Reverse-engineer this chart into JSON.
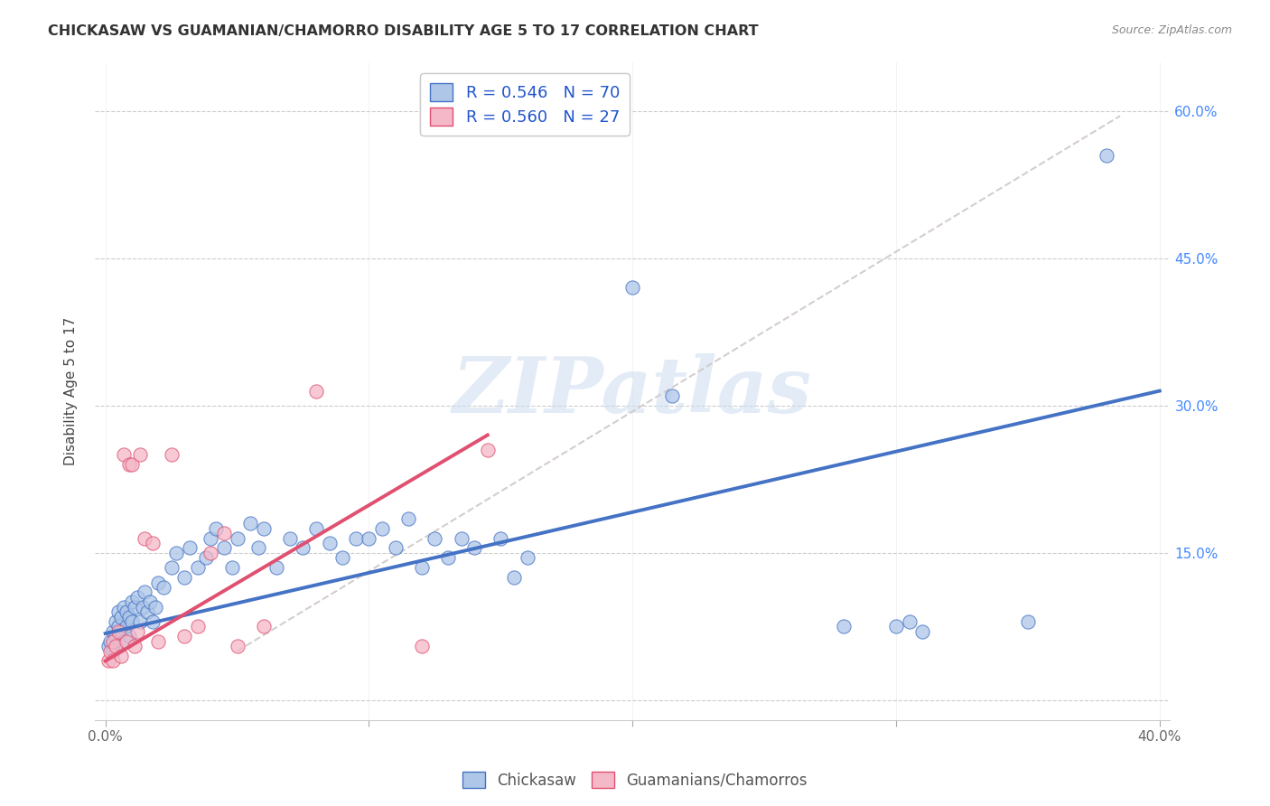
{
  "title": "CHICKASAW VS GUAMANIAN/CHAMORRO DISABILITY AGE 5 TO 17 CORRELATION CHART",
  "source": "Source: ZipAtlas.com",
  "ylabel": "Disability Age 5 to 17",
  "xlim": [
    0.0,
    0.4
  ],
  "ylim": [
    -0.02,
    0.65
  ],
  "ytick_vals": [
    0.0,
    0.15,
    0.3,
    0.45,
    0.6
  ],
  "ytick_labels_right": [
    "",
    "15.0%",
    "30.0%",
    "45.0%",
    "60.0%"
  ],
  "xtick_vals": [
    0.0,
    0.1,
    0.2,
    0.3,
    0.4
  ],
  "xtick_labels": [
    "0.0%",
    "",
    "",
    "",
    "40.0%"
  ],
  "r_chickasaw": 0.546,
  "n_chickasaw": 70,
  "r_guamanian": 0.56,
  "n_guamanian": 27,
  "chickasaw_color": "#aec6e8",
  "guamanian_color": "#f4b8c8",
  "line_chickasaw_color": "#4472c4",
  "line_guamanian_color": "#e05070",
  "line_diagonal_color": "#d0c8c8",
  "background_color": "#ffffff",
  "watermark_text": "ZIPatlas",
  "chickasaw_scatter_x": [
    0.001,
    0.002,
    0.003,
    0.003,
    0.004,
    0.004,
    0.005,
    0.005,
    0.006,
    0.006,
    0.007,
    0.007,
    0.008,
    0.008,
    0.009,
    0.009,
    0.01,
    0.01,
    0.011,
    0.012,
    0.013,
    0.014,
    0.015,
    0.016,
    0.017,
    0.018,
    0.019,
    0.02,
    0.022,
    0.025,
    0.027,
    0.03,
    0.032,
    0.035,
    0.038,
    0.04,
    0.042,
    0.045,
    0.048,
    0.05,
    0.055,
    0.058,
    0.06,
    0.065,
    0.07,
    0.075,
    0.08,
    0.085,
    0.09,
    0.095,
    0.1,
    0.105,
    0.11,
    0.115,
    0.12,
    0.125,
    0.13,
    0.135,
    0.14,
    0.15,
    0.155,
    0.16,
    0.2,
    0.215,
    0.28,
    0.3,
    0.305,
    0.31,
    0.35,
    0.38
  ],
  "chickasaw_scatter_y": [
    0.055,
    0.06,
    0.05,
    0.07,
    0.08,
    0.065,
    0.075,
    0.09,
    0.085,
    0.07,
    0.095,
    0.06,
    0.09,
    0.075,
    0.085,
    0.065,
    0.1,
    0.08,
    0.095,
    0.105,
    0.08,
    0.095,
    0.11,
    0.09,
    0.1,
    0.08,
    0.095,
    0.12,
    0.115,
    0.135,
    0.15,
    0.125,
    0.155,
    0.135,
    0.145,
    0.165,
    0.175,
    0.155,
    0.135,
    0.165,
    0.18,
    0.155,
    0.175,
    0.135,
    0.165,
    0.155,
    0.175,
    0.16,
    0.145,
    0.165,
    0.165,
    0.175,
    0.155,
    0.185,
    0.135,
    0.165,
    0.145,
    0.165,
    0.155,
    0.165,
    0.125,
    0.145,
    0.42,
    0.31,
    0.075,
    0.075,
    0.08,
    0.07,
    0.08,
    0.555
  ],
  "guamanian_scatter_x": [
    0.001,
    0.002,
    0.003,
    0.003,
    0.004,
    0.005,
    0.006,
    0.007,
    0.008,
    0.009,
    0.01,
    0.011,
    0.012,
    0.013,
    0.015,
    0.018,
    0.02,
    0.025,
    0.03,
    0.035,
    0.04,
    0.045,
    0.05,
    0.06,
    0.08,
    0.12,
    0.145
  ],
  "guamanian_scatter_y": [
    0.04,
    0.05,
    0.06,
    0.04,
    0.055,
    0.07,
    0.045,
    0.25,
    0.06,
    0.24,
    0.24,
    0.055,
    0.07,
    0.25,
    0.165,
    0.16,
    0.06,
    0.25,
    0.065,
    0.075,
    0.15,
    0.17,
    0.055,
    0.075,
    0.315,
    0.055,
    0.255
  ],
  "chick_line": [
    [
      0.0,
      0.068
    ],
    [
      0.4,
      0.315
    ]
  ],
  "guam_line": [
    [
      0.0,
      0.04
    ],
    [
      0.145,
      0.27
    ]
  ],
  "diag_line": [
    [
      0.05,
      0.05
    ],
    [
      0.385,
      0.595
    ]
  ]
}
